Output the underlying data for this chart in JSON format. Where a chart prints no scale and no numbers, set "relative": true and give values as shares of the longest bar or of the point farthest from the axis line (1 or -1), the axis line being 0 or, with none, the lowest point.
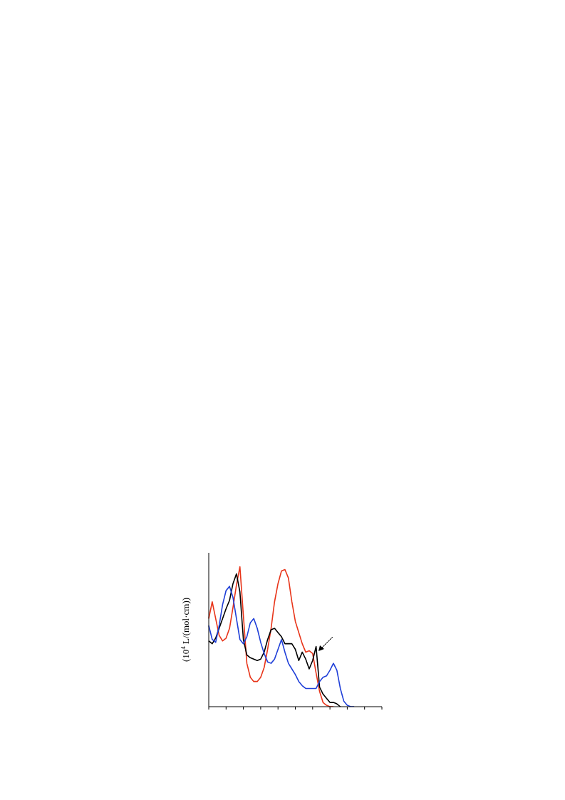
{
  "chart_data": {
    "type": "line",
    "ylabel": "(10$^{4}$ L/(mol·cm))",
    "relative": true,
    "marker": "none",
    "line_style": "solid",
    "grid": false,
    "legend": false,
    "categories": [
      null,
      null,
      null,
      null,
      null,
      null,
      null,
      null,
      null,
      null,
      null,
      null,
      null,
      null,
      null,
      null,
      null,
      null,
      null,
      null,
      null,
      null,
      null,
      null,
      null,
      null,
      null,
      null,
      null,
      null,
      null,
      null,
      null,
      null,
      null,
      null,
      null,
      null,
      null,
      null,
      null,
      null,
      null,
      null,
      null,
      null,
      null,
      null,
      null,
      null,
      null
    ],
    "series": [
      {
        "color": "#e8351a",
        "values": [
          0.63,
          0.75,
          0.63,
          0.51,
          0.47,
          0.49,
          0.56,
          0.71,
          0.87,
          1.0,
          0.65,
          0.31,
          0.21,
          0.18,
          0.18,
          0.21,
          0.28,
          0.41,
          0.56,
          0.75,
          0.88,
          0.97,
          0.98,
          0.92,
          0.75,
          0.61,
          0.53,
          0.45,
          0.39,
          0.4,
          0.38,
          0.24,
          0.11,
          0.03,
          0.01,
          0,
          0,
          null,
          null,
          null,
          null,
          null,
          null,
          null,
          null,
          null,
          null,
          null,
          null,
          null,
          null
        ]
      },
      {
        "color": "#000000",
        "values": [
          0.47,
          0.45,
          0.49,
          0.56,
          0.63,
          0.7,
          0.76,
          0.88,
          0.95,
          0.82,
          0.48,
          0.37,
          0.35,
          0.34,
          0.33,
          0.34,
          0.39,
          0.48,
          0.55,
          0.56,
          0.53,
          0.5,
          0.45,
          0.45,
          0.45,
          0.41,
          0.33,
          0.39,
          0.34,
          0.27,
          0.33,
          0.43,
          0.14,
          0.09,
          0.06,
          0.03,
          0.03,
          0.02,
          0,
          null,
          null,
          null,
          null,
          null,
          null,
          null,
          null,
          null,
          null,
          null,
          null
        ]
      },
      {
        "color": "#1f3fd8",
        "values": [
          0.58,
          0.48,
          0.46,
          0.58,
          0.73,
          0.83,
          0.86,
          0.78,
          0.63,
          0.48,
          0.45,
          0.5,
          0.6,
          0.63,
          0.56,
          0.46,
          0.38,
          0.32,
          0.31,
          0.34,
          0.41,
          0.48,
          0.39,
          0.31,
          0.27,
          0.23,
          0.18,
          0.15,
          0.13,
          0.13,
          0.13,
          0.13,
          0.18,
          0.21,
          0.22,
          0.26,
          0.31,
          0.26,
          0.13,
          0.04,
          0.01,
          0,
          0,
          null,
          null,
          null,
          null,
          null,
          null,
          null,
          null
        ]
      }
    ]
  }
}
